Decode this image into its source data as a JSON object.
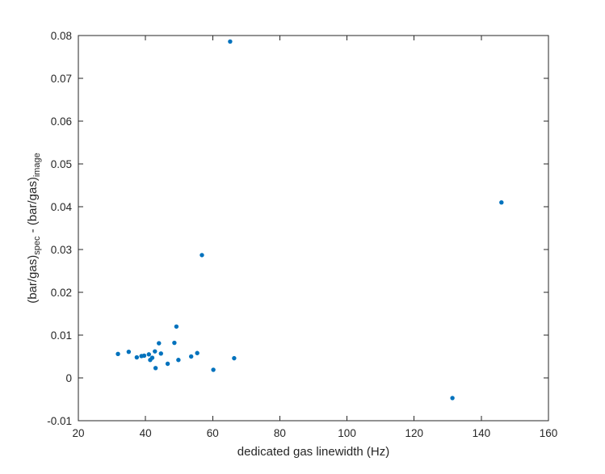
{
  "chart_data": {
    "type": "scatter",
    "xlabel": "dedicated gas linewidth (Hz)",
    "ylabel": {
      "prefix": "(bar/gas)",
      "sub1": "spec",
      "mid": " - (bar/gas)",
      "sub2": "image"
    },
    "xlim": [
      20,
      160
    ],
    "ylim": [
      -0.01,
      0.08
    ],
    "xticks": [
      20,
      40,
      60,
      80,
      100,
      120,
      140,
      160
    ],
    "xtick_labels": [
      "20",
      "40",
      "60",
      "80",
      "100",
      "120",
      "140",
      "160"
    ],
    "yticks": [
      -0.01,
      0,
      0.01,
      0.02,
      0.03,
      0.04,
      0.05,
      0.06,
      0.07,
      0.08
    ],
    "ytick_labels": [
      "-0.01",
      "0",
      "0.01",
      "0.02",
      "0.03",
      "0.04",
      "0.05",
      "0.06",
      "0.07",
      "0.08"
    ],
    "grid": false,
    "marker_color": "#0072BD",
    "series": [
      {
        "points": [
          [
            31.8,
            0.0056
          ],
          [
            35.0,
            0.0061
          ],
          [
            37.4,
            0.0048
          ],
          [
            38.8,
            0.0051
          ],
          [
            39.6,
            0.0052
          ],
          [
            41.0,
            0.0055
          ],
          [
            41.4,
            0.0042
          ],
          [
            42.0,
            0.0047
          ],
          [
            42.8,
            0.0062
          ],
          [
            43.0,
            0.0023
          ],
          [
            44.0,
            0.0081
          ],
          [
            44.6,
            0.0057
          ],
          [
            46.6,
            0.0033
          ],
          [
            48.6,
            0.0082
          ],
          [
            49.2,
            0.012
          ],
          [
            49.8,
            0.0042
          ],
          [
            53.6,
            0.005
          ],
          [
            55.4,
            0.0058
          ],
          [
            56.8,
            0.0287
          ],
          [
            60.2,
            0.0019
          ],
          [
            65.2,
            0.0786
          ],
          [
            66.4,
            0.0046
          ],
          [
            131.4,
            -0.0047
          ],
          [
            146.0,
            0.041
          ]
        ]
      }
    ]
  }
}
